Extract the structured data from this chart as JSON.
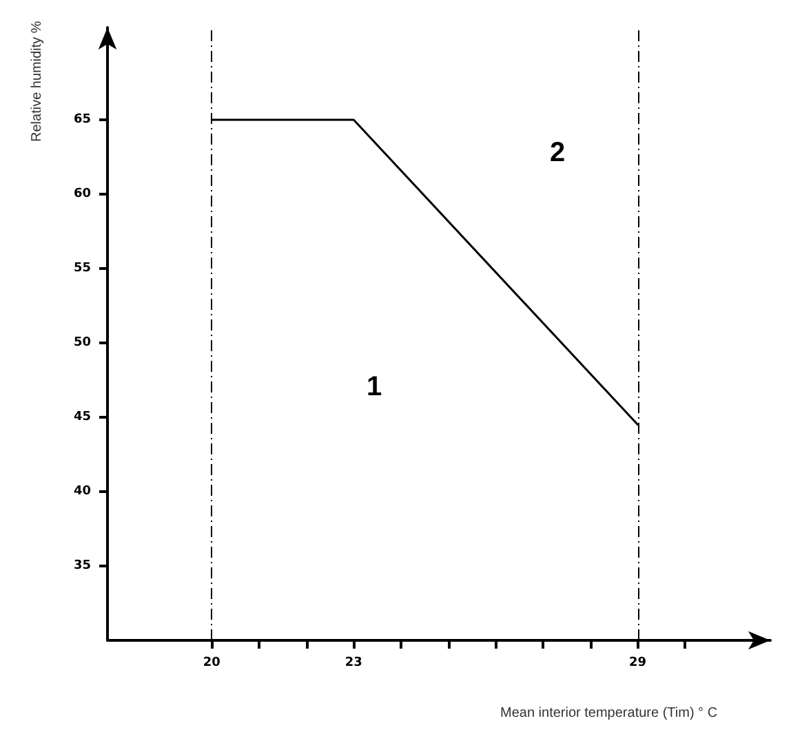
{
  "chart_data": {
    "type": "line",
    "xlabel": "Mean interior temperature (Tim) ° C",
    "ylabel": "Relative humidity %",
    "x": [
      20,
      23,
      29
    ],
    "series": [
      {
        "color": "#000000",
        "values": [
          65,
          65,
          44.5
        ]
      }
    ],
    "xlim": [
      17.8,
      31.8
    ],
    "xticks": [
      20,
      {
        "value": 21,
        "label": null
      },
      {
        "value": 22,
        "label": null
      },
      23,
      {
        "value": 24,
        "label": null
      },
      {
        "value": 25,
        "label": null
      },
      {
        "value": 26,
        "label": null
      },
      {
        "value": 27,
        "label": null
      },
      {
        "value": 28,
        "label": null
      },
      29,
      {
        "value": 30,
        "label": null
      }
    ],
    "ylim": [
      30,
      71.2
    ],
    "yticks": [
      35,
      40,
      45,
      50,
      55,
      60,
      65
    ],
    "ref_lines": [
      {
        "axis": "x",
        "value": 20,
        "line_style": "dashdot",
        "color": "#000000"
      },
      {
        "axis": "x",
        "value": 29,
        "line_style": "dashdot",
        "color": "#000000"
      }
    ],
    "annotations": [
      "1",
      "2"
    ],
    "grid": false,
    "marker": "none",
    "line_style": "solid"
  }
}
